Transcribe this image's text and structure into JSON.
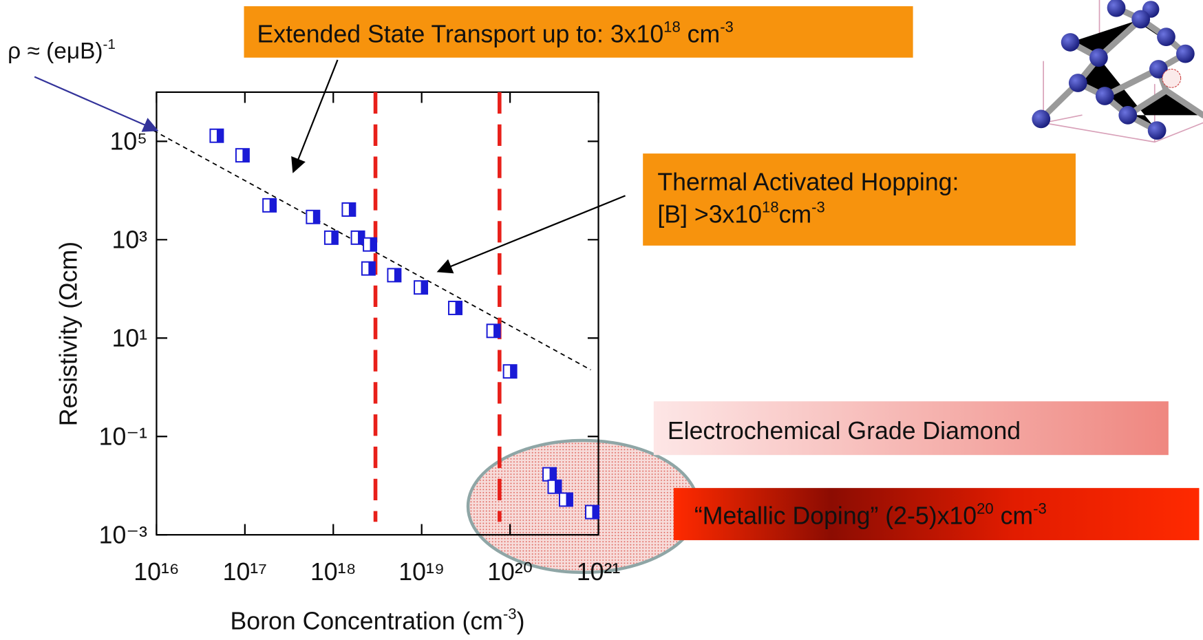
{
  "chart_data": {
    "type": "scatter",
    "xlabel": [
      "Boron Concentration (cm",
      "-3",
      ")"
    ],
    "ylabel": "Resistivity  (Ωcm)",
    "xlog": true,
    "ylog": true,
    "color": "#1a1ad6",
    "x": [
      4.8e+16,
      9.4e+16,
      1.9e+17,
      5.9e+17,
      1.5e+18,
      9.5e+17,
      1.9e+18,
      2.6e+18,
      2.5e+18,
      4.9e+18,
      9.8e+18,
      2.4e+19,
      6.5e+19,
      1e+20,
      2.8e+20,
      3.2e+20,
      4.3e+20,
      8.5e+20
    ],
    "values": [
      130000,
      52000,
      5000,
      2900,
      4100,
      1100,
      1100,
      800,
      260,
      190,
      107,
      41,
      14,
      2.1,
      0.017,
      0.0095,
      0.0052,
      0.0029
    ],
    "xlim": [
      1e+16,
      1e+21
    ],
    "ylim": [
      0.001,
      1000000
    ],
    "xticks": [
      {
        "value": 1e+16,
        "label": "10¹⁶"
      },
      {
        "value": 1e+17,
        "label": "10¹⁷"
      },
      {
        "value": 1e+18,
        "label": "10¹⁸"
      },
      {
        "value": 1e+19,
        "label": "10¹⁹"
      },
      {
        "value": 1e+20,
        "label": "10²⁰"
      },
      {
        "value": 1e+21,
        "label": "10²¹"
      }
    ],
    "yticks": [
      {
        "value": 0.001,
        "label": "10⁻³"
      },
      {
        "value": 0.1,
        "label": "10⁻¹"
      },
      {
        "value": 10,
        "label": "10¹"
      },
      {
        "value": 1000,
        "label": "10³"
      },
      {
        "value": 100000,
        "label": "10⁵"
      }
    ],
    "vlines": {
      "values": [
        3e+18,
        7.6e+19
      ],
      "color": "#e8201a"
    },
    "annotations": [
      {
        "lines": [
          [
            "ρ ≈ (eμB)",
            "-1"
          ]
        ]
      },
      {
        "lines": [
          [
            "Extended State Transport up to: 3x10",
            "18",
            " cm",
            "-3"
          ]
        ]
      },
      {
        "lines": [
          [
            "Thermal Activated Hopping:"
          ],
          [
            "[B] >3x10",
            "18",
            "cm",
            "-3"
          ]
        ]
      },
      {
        "lines": [
          [
            "Electrochemical Grade Diamond"
          ]
        ]
      },
      {
        "lines": [
          [
            "“Metallic Doping”  (2-5)x10",
            "20",
            " cm",
            "-3"
          ]
        ]
      }
    ]
  }
}
